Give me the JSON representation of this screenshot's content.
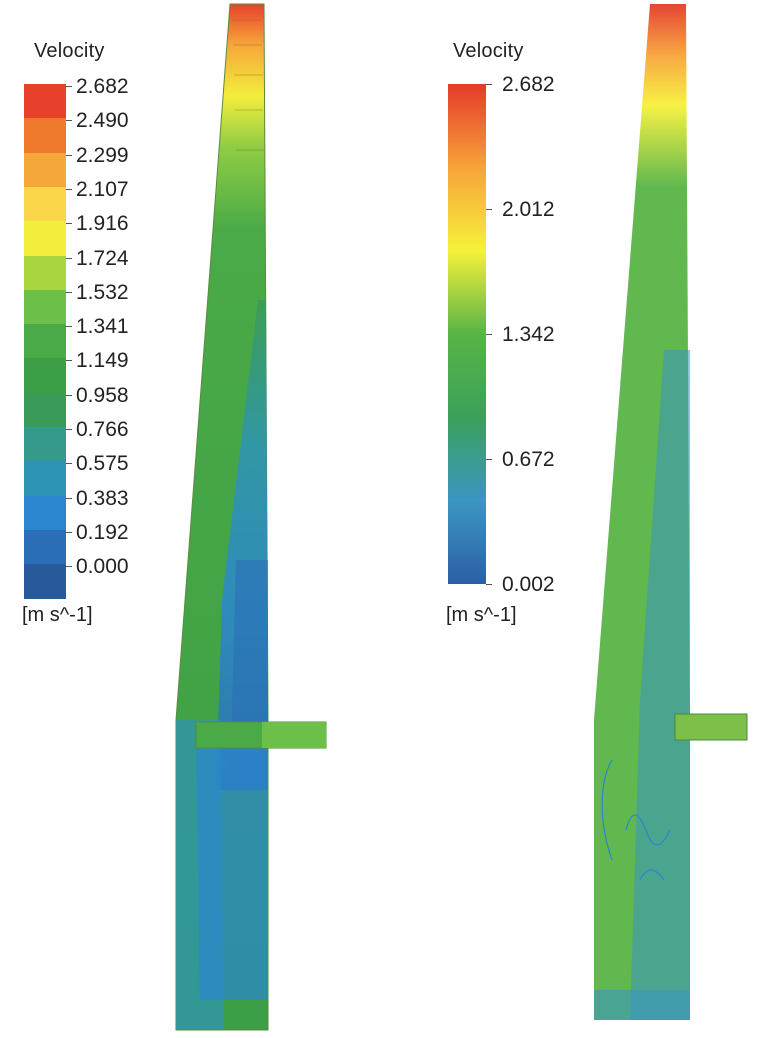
{
  "left_panel": {
    "title": "Velocity",
    "units": "[m s^-1]",
    "ticks": [
      "2.682",
      "2.490",
      "2.299",
      "2.107",
      "1.916",
      "1.724",
      "1.532",
      "1.341",
      "1.149",
      "0.958",
      "0.766",
      "0.575",
      "0.383",
      "0.192",
      "0.000"
    ],
    "band_colors": [
      "#e8412b",
      "#ef7a2e",
      "#f6a73a",
      "#fbd64a",
      "#f2ee3c",
      "#a9d53f",
      "#6cc04a",
      "#4aaa47",
      "#3c9e46",
      "#3a9b58",
      "#35998c",
      "#2e94b6",
      "#2b86cf",
      "#2b6eb8",
      "#285a9b"
    ]
  },
  "right_panel": {
    "title": "Velocity",
    "units": "[m s^-1]",
    "ticks": [
      "2.682",
      "2.012",
      "1.342",
      "0.672",
      "0.002"
    ],
    "gradient_colors": [
      "#e53a2a",
      "#f7a33a",
      "#f6f13a",
      "#58b446",
      "#3aa15a",
      "#3b96c2",
      "#2c5fa6"
    ]
  }
}
